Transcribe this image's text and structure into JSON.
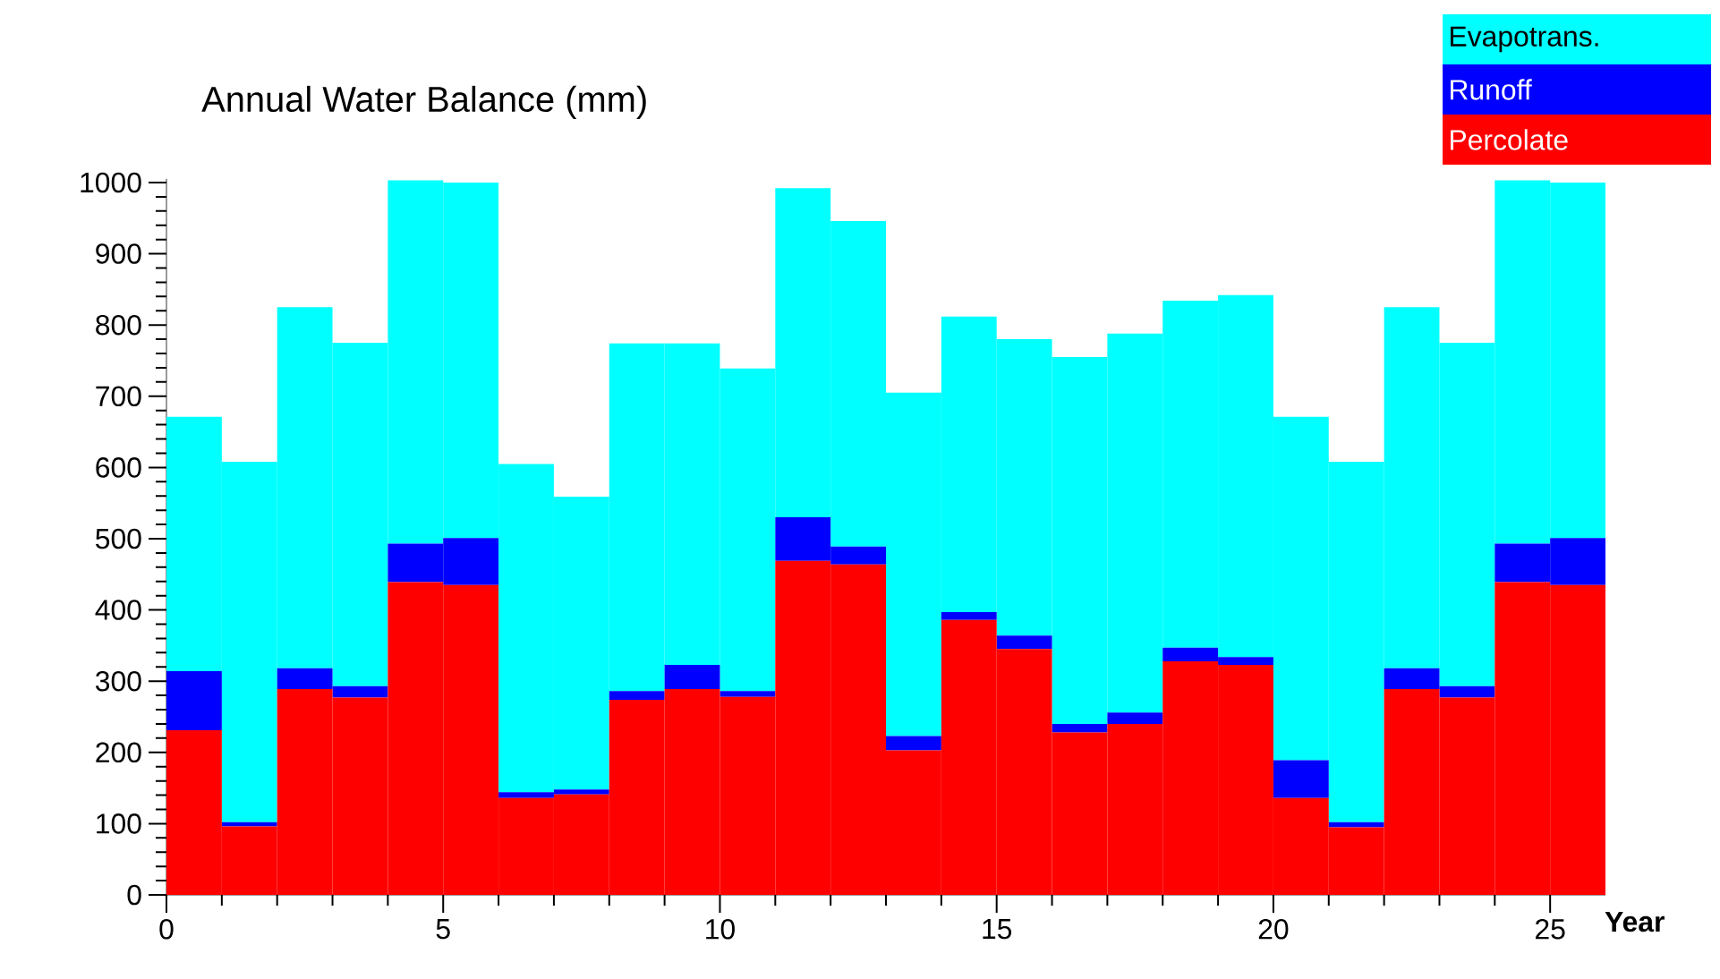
{
  "chart_data": {
    "type": "bar",
    "title": "Annual Water Balance (mm)",
    "xlabel": "Year",
    "stacked": true,
    "x": [
      0.5,
      1.5,
      2.5,
      3.5,
      4.5,
      5.5,
      6.5,
      7.5,
      8.5,
      9.5,
      10.5,
      11.5,
      12.5,
      13.5,
      14.5,
      15.5,
      16.5,
      17.5,
      18.5,
      19.5,
      20.5,
      21.5,
      22.5,
      23.5,
      24.5,
      25.5
    ],
    "series": [
      {
        "name": "Percolate",
        "color": "#ff0000",
        "values": [
          231,
          96,
          289,
          277,
          439,
          435,
          136,
          141,
          274,
          289,
          278,
          469,
          464,
          203,
          386,
          345,
          228,
          240,
          328,
          323,
          136,
          95,
          289,
          277,
          439,
          435
        ]
      },
      {
        "name": "Runoff",
        "color": "#0000ff",
        "values": [
          83,
          6,
          29,
          16,
          54,
          66,
          8,
          7,
          12,
          34,
          8,
          61,
          25,
          20,
          11,
          19,
          12,
          16,
          19,
          11,
          53,
          7,
          29,
          16,
          54,
          66
        ]
      },
      {
        "name": "Evapotrans.",
        "color": "#00ffff",
        "values": [
          357,
          506,
          507,
          482,
          510,
          499,
          461,
          411,
          488,
          451,
          453,
          462,
          457,
          482,
          415,
          416,
          515,
          532,
          487,
          508,
          482,
          506,
          507,
          482,
          510,
          499
        ]
      }
    ],
    "xlim": [
      0,
      26
    ],
    "xticks": [
      0,
      5,
      10,
      15,
      20,
      25
    ],
    "ylim": [
      0,
      1005
    ],
    "yticks": [
      0,
      100,
      200,
      300,
      400,
      500,
      600,
      700,
      800,
      900,
      1000
    ],
    "legend": "top right"
  }
}
